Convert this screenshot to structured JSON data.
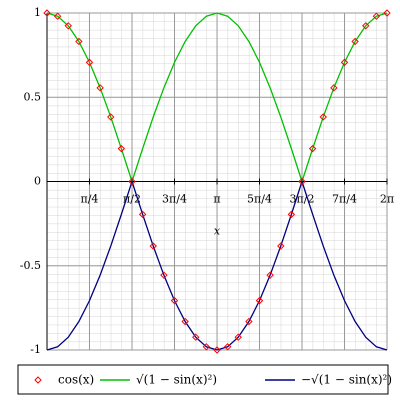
{
  "chart_data": {
    "type": "line",
    "x_label": "x",
    "x": [
      0,
      0.196,
      0.393,
      0.589,
      0.785,
      0.982,
      1.178,
      1.374,
      1.571,
      1.767,
      1.963,
      2.16,
      2.356,
      2.553,
      2.749,
      2.945,
      3.142,
      3.338,
      3.534,
      3.731,
      3.927,
      4.123,
      4.32,
      4.516,
      4.712,
      4.909,
      5.105,
      5.301,
      5.498,
      5.694,
      5.89,
      6.087,
      6.283
    ],
    "series": [
      {
        "name": "cos(x)",
        "color": "#ff0000",
        "style": "points",
        "values": [
          1,
          0.981,
          0.924,
          0.831,
          0.707,
          0.556,
          0.383,
          0.195,
          0,
          -0.195,
          -0.383,
          -0.556,
          -0.707,
          -0.831,
          -0.924,
          -0.981,
          -1,
          -0.981,
          -0.924,
          -0.831,
          -0.707,
          -0.556,
          -0.383,
          -0.195,
          0,
          0.195,
          0.383,
          0.556,
          0.707,
          0.831,
          0.924,
          0.981,
          1
        ]
      },
      {
        "name": "√(1 − sin(x)²)",
        "color": "#00c000",
        "style": "line",
        "values": [
          1,
          0.981,
          0.924,
          0.831,
          0.707,
          0.556,
          0.383,
          0.195,
          0,
          0.195,
          0.383,
          0.556,
          0.707,
          0.831,
          0.924,
          0.981,
          1,
          0.981,
          0.924,
          0.831,
          0.707,
          0.556,
          0.383,
          0.195,
          0,
          0.195,
          0.383,
          0.556,
          0.707,
          0.831,
          0.924,
          0.981,
          1
        ]
      },
      {
        "name": "−√(1 − sin(x)²)",
        "color": "#000080",
        "style": "line",
        "values": [
          -1,
          -0.981,
          -0.924,
          -0.831,
          -0.707,
          -0.556,
          -0.383,
          -0.195,
          0,
          -0.195,
          -0.383,
          -0.556,
          -0.707,
          -0.831,
          -0.924,
          -0.981,
          -1,
          -0.981,
          -0.924,
          -0.831,
          -0.707,
          -0.556,
          -0.383,
          -0.195,
          0,
          -0.195,
          -0.383,
          -0.556,
          -0.707,
          -0.831,
          -0.924,
          -0.981,
          -1
        ]
      }
    ],
    "xlim": [
      0,
      6.283
    ],
    "ylim": [
      -1,
      1
    ],
    "xticks": [
      {
        "value": 0.785,
        "label": "π/4"
      },
      {
        "value": 1.571,
        "label": "π/2"
      },
      {
        "value": 2.356,
        "label": "3π/4"
      },
      {
        "value": 3.142,
        "label": "π"
      },
      {
        "value": 3.927,
        "label": "5π/4"
      },
      {
        "value": 4.712,
        "label": "3π/2"
      },
      {
        "value": 5.498,
        "label": "7π/4"
      },
      {
        "value": 6.283,
        "label": "2π"
      }
    ],
    "yticks": [
      -1,
      -0.5,
      0,
      0.5,
      1
    ],
    "grid": true,
    "legend": "bottom"
  }
}
